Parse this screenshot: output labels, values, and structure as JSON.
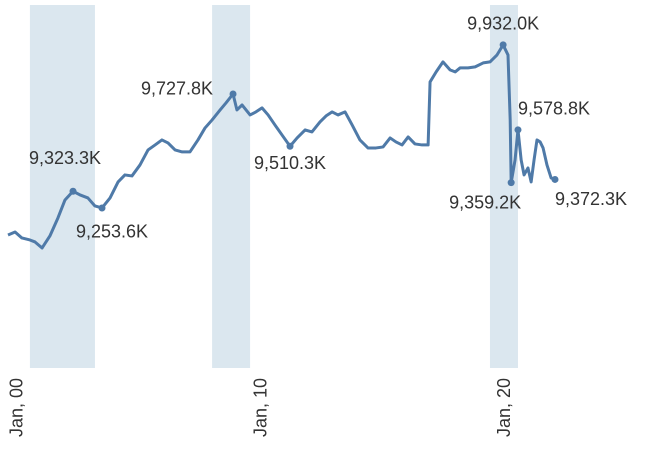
{
  "chart_data": {
    "type": "line",
    "color": "#4f7aa8",
    "shade_color": "#dbe7ef",
    "x": [
      -0.41,
      -0.12,
      0.16,
      0.49,
      0.7,
      0.99,
      1.31,
      1.64,
      1.93,
      2.26,
      2.55,
      2.87,
      3.16,
      3.45,
      3.78,
      4.11,
      4.39,
      4.68,
      5.01,
      5.34,
      5.63,
      5.91,
      6.16,
      6.45,
      6.74,
      7.06,
      7.39,
      7.68,
      7.97,
      8.3,
      8.54,
      8.83,
      8.99,
      9.2,
      9.53,
      9.77,
      10.02,
      10.27,
      10.55,
      10.84,
      11.17,
      11.46,
      11.79,
      12.07,
      12.4,
      12.65,
      12.9,
      13.14,
      13.43,
      13.72,
      14.04,
      14.37,
      14.7,
      14.99,
      15.28,
      15.52,
      15.77,
      16.02,
      16.3,
      16.59,
      16.84,
      16.92,
      17.17,
      17.45,
      17.74,
      17.95,
      18.15,
      18.48,
      18.77,
      19.1,
      19.38,
      19.67,
      19.92,
      20.12,
      20.21,
      20.25,
      20.41,
      20.53,
      20.66,
      20.78,
      20.94,
      21.07,
      21.19,
      21.31,
      21.44,
      21.56,
      21.72,
      21.89,
      22.05
    ],
    "values": [
      9141.4,
      9153.9,
      9128.9,
      9120.6,
      9112.3,
      9087.3,
      9137.2,
      9212.1,
      9287.0,
      9323.3,
      9307.8,
      9295.4,
      9262.1,
      9253.6,
      9295.4,
      9361.9,
      9391.1,
      9386.9,
      9432.7,
      9495.1,
      9515.9,
      9536.7,
      9524.2,
      9495.1,
      9486.8,
      9486.8,
      9536.7,
      9586.6,
      9619.9,
      9661.5,
      9690.7,
      9727.8,
      9661.5,
      9682.3,
      9640.7,
      9653.2,
      9669.9,
      9640.7,
      9599.1,
      9557.5,
      9510.3,
      9545.0,
      9578.3,
      9570.0,
      9611.6,
      9636.6,
      9653.2,
      9640.7,
      9653.2,
      9599.1,
      9536.7,
      9503.4,
      9503.4,
      9507.6,
      9545.0,
      9528.4,
      9515.9,
      9549.2,
      9520.1,
      9515.9,
      9515.9,
      9778.0,
      9819.7,
      9861.3,
      9828.0,
      9819.7,
      9836.3,
      9836.3,
      9840.5,
      9857.1,
      9861.3,
      9890.4,
      9932.0,
      9890.4,
      9619.9,
      9359.2,
      9453.5,
      9578.8,
      9453.5,
      9391.1,
      9420.2,
      9361.9,
      9453.5,
      9536.7,
      9528.4,
      9503.4,
      9432.7,
      9378.6,
      9372.3
    ],
    "xlim": [
      -0.41,
      25.54
    ],
    "ylim": [
      8588,
      10098
    ],
    "xticks": [
      {
        "value": 0,
        "label": "Jan, 00"
      },
      {
        "value": 10,
        "label": "Jan, 10"
      },
      {
        "value": 20,
        "label": "Jan, 20"
      }
    ],
    "shaded_regions": [
      [
        0.49,
        3.16
      ],
      [
        7.97,
        9.53
      ],
      [
        19.38,
        20.53
      ]
    ],
    "annotations": [
      {
        "x": 2.26,
        "value": 9323.3,
        "label": "9,323.3K"
      },
      {
        "x": 3.45,
        "value": 9253.6,
        "label": "9,253.6K"
      },
      {
        "x": 8.83,
        "value": 9727.8,
        "label": "9,727.8K"
      },
      {
        "x": 11.17,
        "value": 9510.3,
        "label": "9,510.3K"
      },
      {
        "x": 19.92,
        "value": 9932.0,
        "label": "9,932.0K"
      },
      {
        "x": 20.53,
        "value": 9578.8,
        "label": "9,578.8K"
      },
      {
        "x": 20.25,
        "value": 9359.2,
        "label": "9,359.2K"
      },
      {
        "x": 22.05,
        "value": 9372.3,
        "label": "9,372.3K"
      }
    ]
  }
}
